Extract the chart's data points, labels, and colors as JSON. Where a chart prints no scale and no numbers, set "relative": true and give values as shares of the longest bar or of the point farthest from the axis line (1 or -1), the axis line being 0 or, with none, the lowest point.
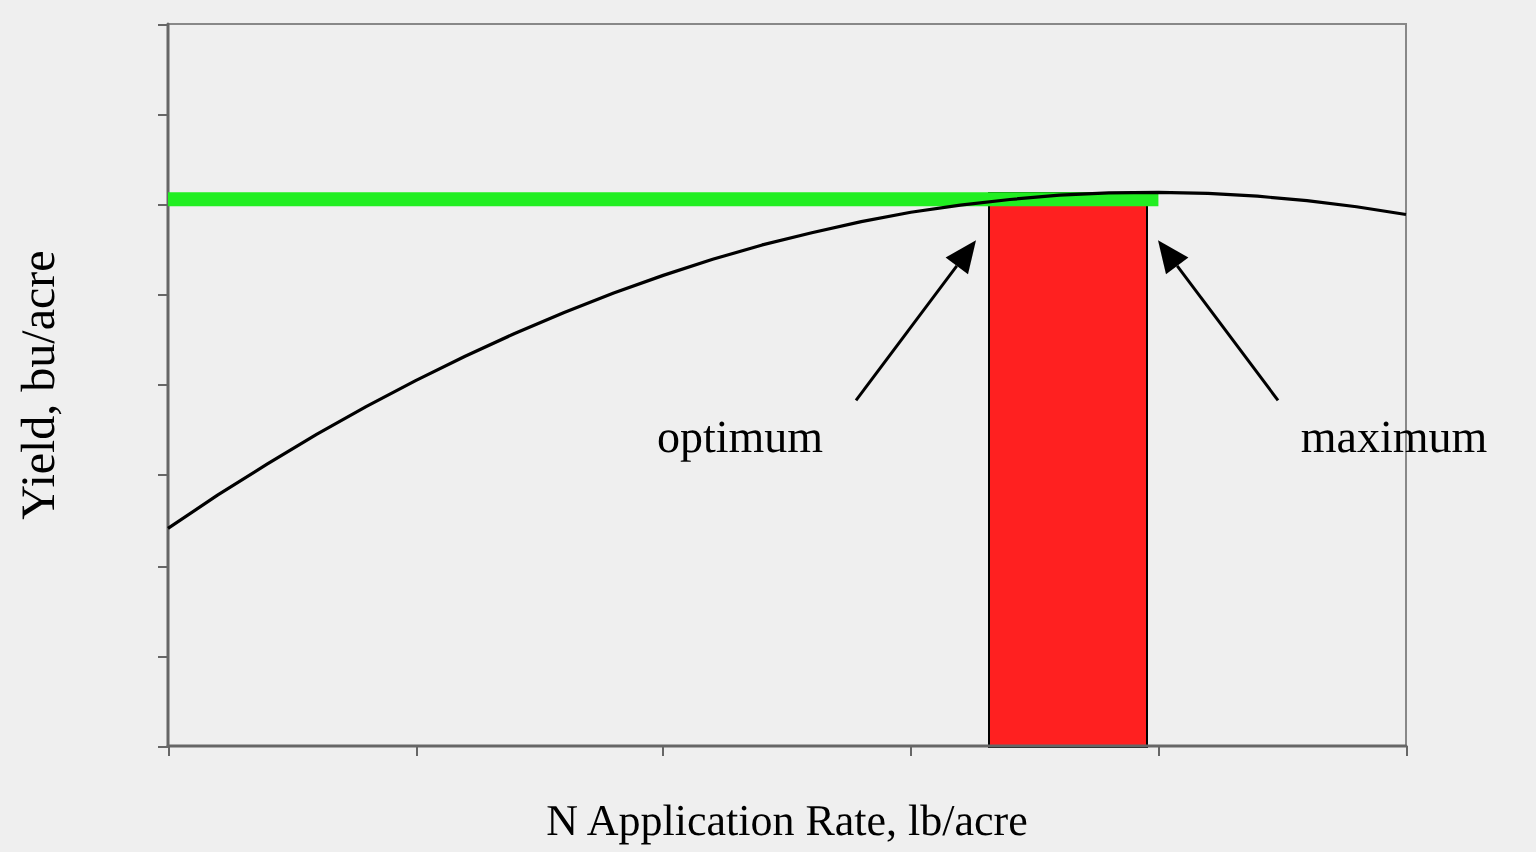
{
  "chart_data": {
    "type": "line",
    "relative": true,
    "xlabel": "N Application Rate, lb/acre",
    "ylabel": "Yield, bu/acre",
    "categories": [
      null,
      null,
      null,
      null,
      null,
      null,
      null,
      null,
      null,
      null,
      null,
      null,
      null,
      null,
      null,
      null,
      null,
      null,
      null,
      null,
      null,
      null,
      null,
      null,
      null,
      null
    ],
    "values": [
      0.393,
      0.453,
      0.509,
      0.563,
      0.613,
      0.66,
      0.704,
      0.745,
      0.783,
      0.818,
      0.85,
      0.879,
      0.905,
      0.927,
      0.947,
      0.964,
      0.977,
      0.987,
      0.995,
      0.999,
      1.0,
      0.998,
      0.993,
      0.985,
      0.974,
      0.96
    ],
    "color": "#000000",
    "marker": "none",
    "line_style": "solid",
    "grid": false,
    "bands": [
      {
        "axis": "y",
        "from": 0.975,
        "to": 1.0,
        "color": "#22ee22"
      }
    ],
    "annotations": [
      "optimum",
      "maximum"
    ]
  }
}
